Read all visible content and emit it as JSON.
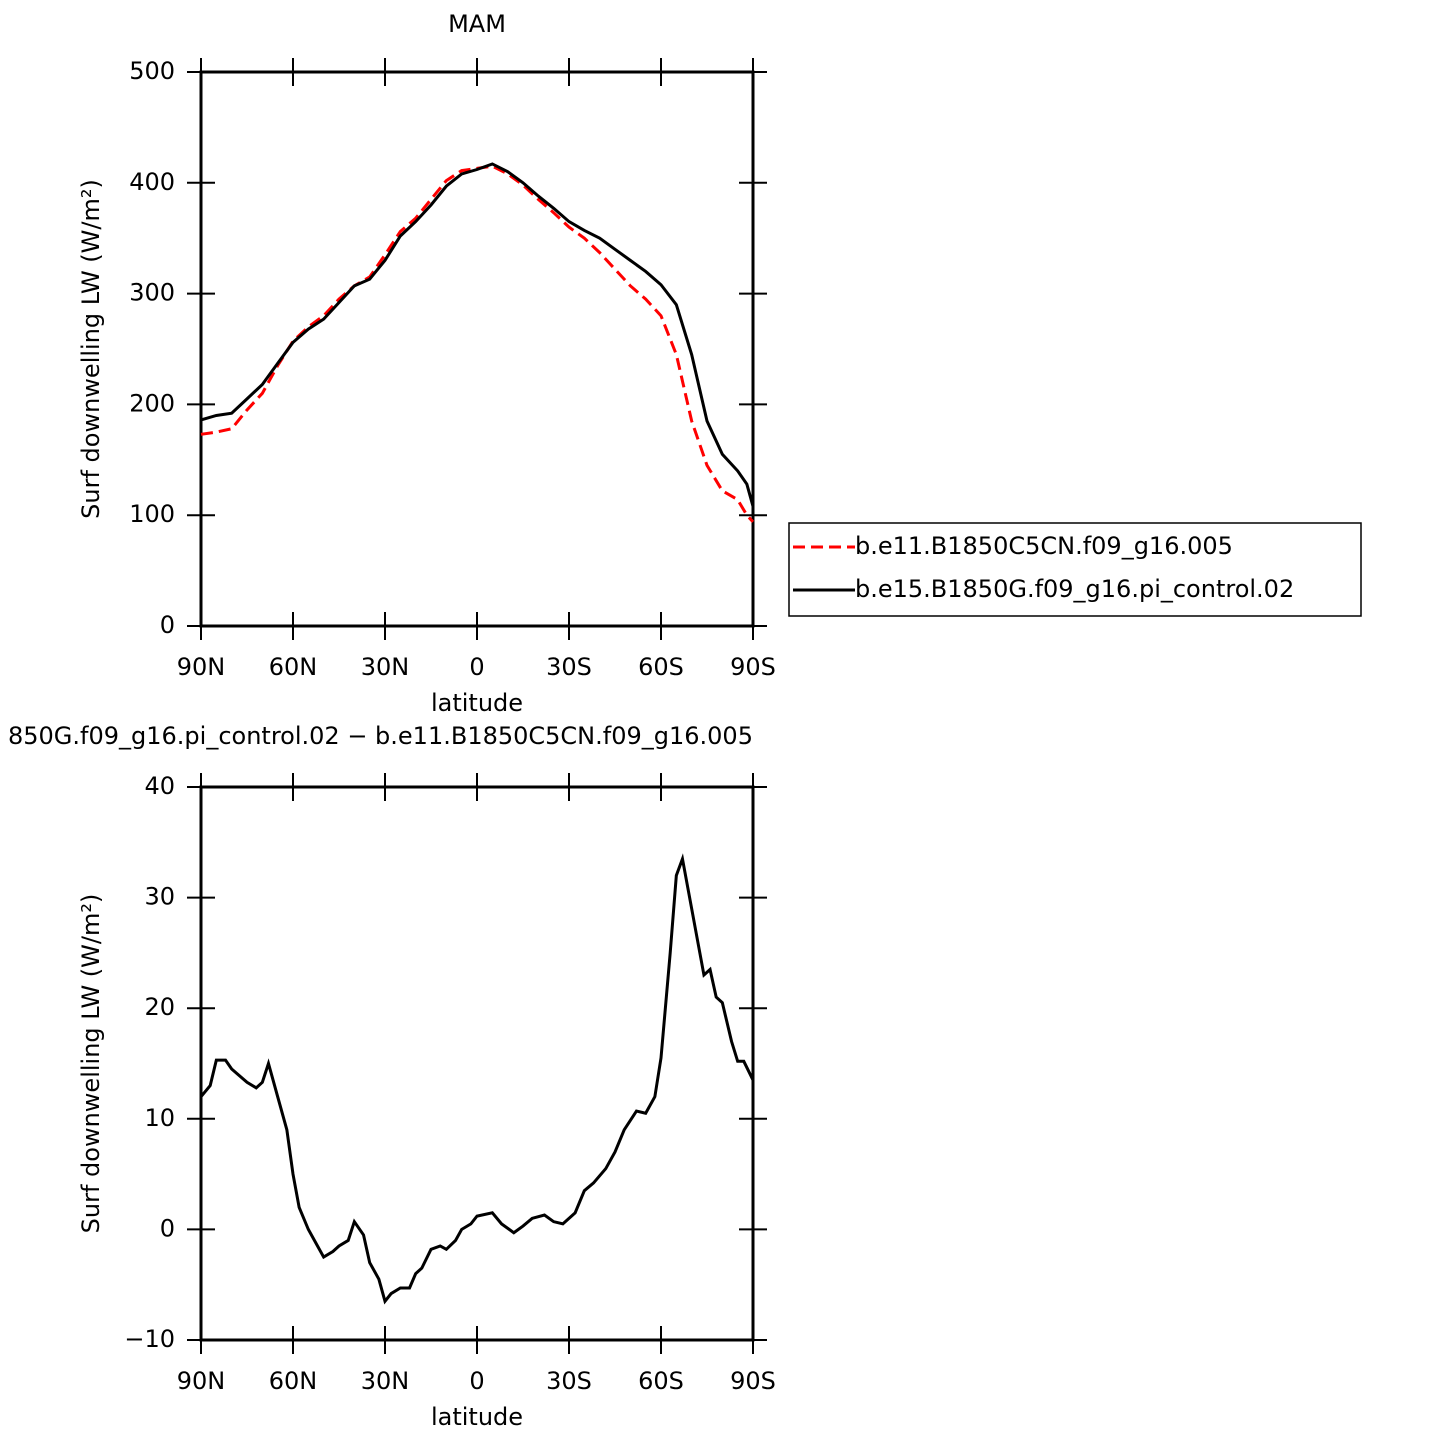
{
  "chart_data": [
    {
      "type": "line",
      "title": "MAM",
      "xlabel": "latitude",
      "ylabel": "Surf downwelling LW (W/m²)",
      "xlim": [
        90,
        -90
      ],
      "xticks": [
        {
          "value": 90,
          "label": "90N"
        },
        {
          "value": 60,
          "label": "60N"
        },
        {
          "value": 30,
          "label": "30N"
        },
        0,
        {
          "value": -30,
          "label": "30S"
        },
        {
          "value": -60,
          "label": "60S"
        },
        {
          "value": -90,
          "label": "90S"
        }
      ],
      "ylim": [
        0,
        500
      ],
      "yticks": [
        0,
        100,
        200,
        300,
        400,
        500
      ],
      "legend": "right",
      "x": [
        90,
        85,
        80,
        75,
        70,
        65,
        60,
        55,
        50,
        45,
        40,
        35,
        30,
        25,
        20,
        15,
        10,
        5,
        0,
        -5,
        -10,
        -15,
        -20,
        -25,
        -30,
        -35,
        -40,
        -45,
        -50,
        -55,
        -60,
        -65,
        -70,
        -75,
        -80,
        -85,
        -88,
        -90
      ],
      "series": [
        {
          "name": "b.e11.B1850C5CN.f09_g16.005",
          "color": "#ff0000",
          "dashed": true,
          "values": [
            173,
            175,
            178,
            195,
            210,
            235,
            257,
            270,
            280,
            295,
            307,
            315,
            335,
            356,
            368,
            385,
            402,
            411,
            413,
            415,
            408,
            398,
            385,
            373,
            360,
            350,
            337,
            322,
            307,
            295,
            280,
            245,
            185,
            145,
            122,
            114,
            100,
            94
          ]
        },
        {
          "name": "b.e15.B1850G.f09_g16.pi_control.02",
          "color": "#000000",
          "dashed": false,
          "values": [
            186,
            190,
            192,
            205,
            218,
            237,
            256,
            268,
            277,
            292,
            307,
            313,
            330,
            352,
            365,
            380,
            397,
            408,
            412,
            417,
            410,
            400,
            388,
            377,
            365,
            357,
            350,
            340,
            330,
            320,
            308,
            290,
            245,
            185,
            155,
            140,
            128,
            108
          ]
        }
      ]
    },
    {
      "type": "line",
      "title": "850G.f09_g16.pi_control.02 − b.e11.B1850C5CN.f09_g16.005",
      "xlabel": "latitude",
      "ylabel": "Surf downwelling LW (W/m²)",
      "xlim": [
        90,
        -90
      ],
      "xticks": [
        {
          "value": 90,
          "label": "90N"
        },
        {
          "value": 60,
          "label": "60N"
        },
        {
          "value": 30,
          "label": "30N"
        },
        0,
        {
          "value": -30,
          "label": "30S"
        },
        {
          "value": -60,
          "label": "60S"
        },
        {
          "value": -90,
          "label": "90S"
        }
      ],
      "ylim": [
        -10,
        40
      ],
      "yticks": [
        {
          "value": -10,
          "label": "−10"
        },
        0,
        10,
        20,
        30,
        40
      ],
      "color": "#000000",
      "x": [
        90,
        87,
        85,
        82,
        80,
        75,
        72,
        70,
        68,
        65,
        62,
        60,
        58,
        55,
        52,
        50,
        47,
        45,
        42,
        40,
        37,
        35,
        32,
        30,
        28,
        25,
        22,
        20,
        18,
        15,
        12,
        10,
        7,
        5,
        2,
        0,
        -5,
        -8,
        -12,
        -15,
        -18,
        -22,
        -25,
        -28,
        -32,
        -35,
        -38,
        -42,
        -45,
        -48,
        -52,
        -55,
        -58,
        -60,
        -63,
        -65,
        -67,
        -70,
        -72,
        -74,
        -76,
        -78,
        -80,
        -83,
        -85,
        -87,
        -90
      ],
      "values": [
        12,
        13,
        15.3,
        15.3,
        14.5,
        13.3,
        12.8,
        13.3,
        15,
        12,
        9,
        5,
        2,
        0,
        -1.5,
        -2.5,
        -2,
        -1.5,
        -1,
        0.7,
        -0.5,
        -3,
        -4.5,
        -6.5,
        -5.8,
        -5.3,
        -5.3,
        -4,
        -3.5,
        -1.8,
        -1.5,
        -1.8,
        -1,
        0,
        0.5,
        1.2,
        1.5,
        0.5,
        -0.3,
        0.3,
        1,
        1.3,
        0.7,
        0.5,
        1.5,
        3.5,
        4.2,
        5.5,
        7,
        9,
        10.7,
        10.5,
        12,
        15.5,
        25,
        32,
        33.5,
        29,
        26,
        23,
        23.5,
        21,
        20.5,
        17,
        15.2,
        15.2,
        13.5
      ]
    }
  ]
}
